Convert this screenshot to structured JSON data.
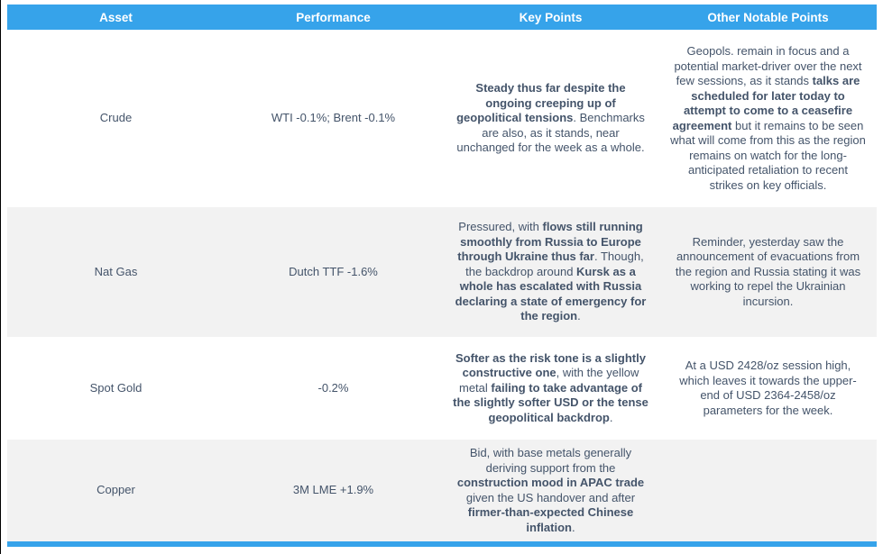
{
  "theme": {
    "header_bg": "#36a3ea",
    "header_text": "#ffffff",
    "stripe_bg": "#f2f2f2",
    "text_color": "#44546a"
  },
  "table": {
    "columns": [
      {
        "label": "Asset"
      },
      {
        "label": "Performance"
      },
      {
        "label": "Key Points"
      },
      {
        "label": "Other Notable Points"
      }
    ],
    "rows": [
      {
        "asset": "Crude",
        "performance": "WTI -0.1%; Brent -0.1%",
        "key_points": [
          {
            "text": "Steady thus far despite the ongoing creeping up of geopolitical tensions",
            "bold": true
          },
          {
            "text": ". Benchmarks are also, as it stands, near unchanged for the week as a whole.",
            "bold": false
          }
        ],
        "other_points": [
          {
            "text": "Geopols. remain in focus and a potential market-driver over the next few sessions, as it stands ",
            "bold": false
          },
          {
            "text": "talks are scheduled for later today to attempt to come to a ceasefire agreement",
            "bold": true
          },
          {
            "text": " but it remains to be seen what will come from this as the region remains on watch for the long-anticipated retaliation to recent strikes on key officials.",
            "bold": false
          }
        ]
      },
      {
        "asset": "Nat Gas",
        "performance": "Dutch TTF -1.6%",
        "key_points": [
          {
            "text": "Pressured, with ",
            "bold": false
          },
          {
            "text": "flows still running smoothly from Russia to Europe through Ukraine thus far",
            "bold": true
          },
          {
            "text": ". Though, the backdrop around ",
            "bold": false
          },
          {
            "text": "Kursk as a whole has escalated with Russia declaring a state of emergency for the region",
            "bold": true
          },
          {
            "text": ".",
            "bold": false
          }
        ],
        "other_points": [
          {
            "text": "Reminder, yesterday saw the announcement of evacuations from the region and Russia stating it was working to repel the Ukrainian incursion.",
            "bold": false
          }
        ]
      },
      {
        "asset": "Spot Gold",
        "performance": "-0.2%",
        "key_points": [
          {
            "text": "Softer as the risk tone is a slightly constructive one",
            "bold": true
          },
          {
            "text": ", with the yellow metal ",
            "bold": false
          },
          {
            "text": "failing to take advantage of the slightly softer USD or the tense geopolitical backdrop",
            "bold": true
          },
          {
            "text": ".",
            "bold": false
          }
        ],
        "other_points": [
          {
            "text": "At a USD 2428/oz session high, which leaves it towards the upper-end of USD 2364-2458/oz parameters for the week.",
            "bold": false
          }
        ]
      },
      {
        "asset": "Copper",
        "performance": "3M LME +1.9%",
        "key_points": [
          {
            "text": "Bid, with base metals generally deriving support from the ",
            "bold": false
          },
          {
            "text": "construction mood in APAC trade",
            "bold": true
          },
          {
            "text": " given the US handover and after ",
            "bold": false
          },
          {
            "text": "firmer-than-expected Chinese inflation",
            "bold": true
          },
          {
            "text": ".",
            "bold": false
          }
        ],
        "other_points": []
      }
    ]
  }
}
